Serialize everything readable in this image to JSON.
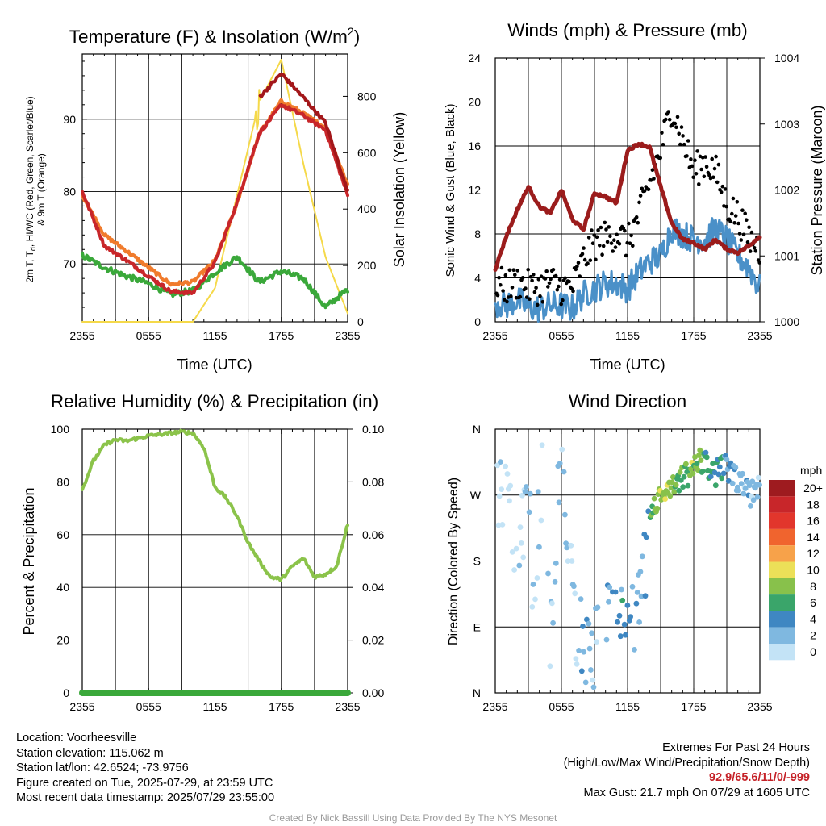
{
  "colors": {
    "red": "#c8262a",
    "green": "#3aa83a",
    "orange": "#f07b2c",
    "yellow": "#f5d94a",
    "maroon": "#9b1c1c",
    "blue": "#4a90c8",
    "black": "#000000",
    "rh_green": "#8bc34a",
    "precip_green": "#3aa83a",
    "extremes_red": "#c52127",
    "credit_gray": "#9a9a9a"
  },
  "panels": {
    "temperature": {
      "title_main": "Temperature (F) & Insolation (W/m",
      "title_sup": "2",
      "title_end": ")",
      "ylabel_line1": "2m T, T",
      "ylabel_sub": "d",
      "ylabel_rest": ", HI/WC (Red, Green, Scarlet/Blue)",
      "ylabel_line2": "& 9m T (Orange)",
      "y2label": "Solar Insolation (Yellow)",
      "xlabel": "Time (UTC)",
      "xticks": [
        "2355",
        "0555",
        "1155",
        "1755",
        "2355"
      ],
      "yticks": [
        "70",
        "80",
        "90"
      ],
      "y2ticks": [
        "0",
        "200",
        "400",
        "600",
        "800"
      ]
    },
    "winds": {
      "title": "Winds (mph) & Pressure (mb)",
      "ylabel": "Sonic Wind & Gust (Blue, Black)",
      "y2label": "Station Pressure (Maroon)",
      "xlabel": "Time (UTC)",
      "xticks": [
        "2355",
        "0555",
        "1155",
        "1755",
        "2355"
      ],
      "yticks": [
        "0",
        "4",
        "8",
        "12",
        "16",
        "20",
        "24"
      ],
      "y2ticks": [
        "1000",
        "1001",
        "1002",
        "1003",
        "1004"
      ]
    },
    "humidity": {
      "title": "Relative Humidity (%) & Precipitation (in)",
      "ylabel": "Percent & Precipitation",
      "xticks": [
        "2355",
        "0555",
        "1155",
        "1755",
        "2355"
      ],
      "yticks": [
        "0",
        "20",
        "40",
        "60",
        "80",
        "100"
      ],
      "y2ticks": [
        "0.00",
        "0.02",
        "0.04",
        "0.06",
        "0.08",
        "0.10"
      ]
    },
    "direction": {
      "title": "Wind Direction",
      "ylabel": "Direction (Colored By Speed)",
      "xticks": [
        "2355",
        "0555",
        "1155",
        "1755",
        "2355"
      ],
      "yticks": [
        "N",
        "E",
        "S",
        "W",
        "N"
      ],
      "legend_title": "mph",
      "legend_labels": [
        "20+",
        "18",
        "16",
        "14",
        "12",
        "10",
        "8",
        "6",
        "4",
        "2",
        "0"
      ],
      "legend_colors": [
        "#9e1b1f",
        "#c8262a",
        "#e2362c",
        "#f0642e",
        "#f7a24a",
        "#ece058",
        "#88c14b",
        "#3aa56a",
        "#3f87c2",
        "#7fb8e0",
        "#c3e3f6"
      ]
    }
  },
  "chart_data": [
    {
      "type": "line",
      "title": "Temperature (F) & Insolation (W/m2)",
      "xlabel": "Time (UTC)",
      "ylabel": "2m T, Td, HI/WC (Red, Green, Scarlet/Blue) & 9m T (Orange)",
      "y2label": "Solar Insolation (Yellow)",
      "x_hours": [
        0,
        2,
        4,
        6,
        8,
        10,
        12,
        14,
        16,
        18,
        20,
        22,
        24
      ],
      "xlim_hours": [
        0,
        24
      ],
      "ylim": [
        62,
        99
      ],
      "y2lim": [
        0,
        950
      ],
      "grid": true,
      "series": [
        {
          "name": "2m T (Red)",
          "values": [
            80,
            72.5,
            70.5,
            68.3,
            66.2,
            66,
            70.2,
            78.5,
            88,
            92,
            90.5,
            88.5,
            79.5
          ],
          "axis": "left",
          "color": "#c8262a"
        },
        {
          "name": "Td (Green)",
          "values": [
            71.2,
            69.5,
            68.3,
            67.3,
            65.8,
            66.3,
            68.8,
            71,
            67.5,
            69,
            68,
            64,
            66.5
          ],
          "axis": "left",
          "color": "#3aa83a"
        },
        {
          "name": "HI/WC (Scarlet)",
          "values": [
            null,
            null,
            null,
            null,
            null,
            null,
            null,
            null,
            93,
            96.3,
            93,
            89.5,
            80
          ],
          "axis": "left",
          "color": "#a3171a"
        },
        {
          "name": "9m T (Orange)",
          "values": [
            79.5,
            74,
            71.8,
            69.5,
            67.2,
            67.5,
            70.5,
            78.3,
            88,
            92.5,
            90.8,
            88.8,
            81
          ],
          "axis": "left",
          "color": "#f07b2c"
        },
        {
          "name": "Solar Insolation (Yellow)",
          "values": [
            0,
            0,
            0,
            0,
            0,
            0,
            120,
            450,
            780,
            930,
            560,
            230,
            30
          ],
          "axis": "right",
          "color": "#f5d94a"
        }
      ]
    },
    {
      "type": "line",
      "title": "Winds (mph) & Pressure (mb)",
      "xlabel": "Time (UTC)",
      "ylabel": "Sonic Wind & Gust (Blue, Black)",
      "y2label": "Station Pressure (Maroon)",
      "x_hours": [
        0,
        1,
        2,
        3,
        4,
        5,
        6,
        7,
        8,
        9,
        10,
        11,
        12,
        13,
        14,
        15,
        16,
        17,
        18,
        19,
        20,
        21,
        22,
        23,
        24
      ],
      "xlim_hours": [
        0,
        24
      ],
      "ylim": [
        0,
        24
      ],
      "y2lim": [
        1000,
        1004
      ],
      "grid": true,
      "series": [
        {
          "name": "Sonic Wind (Blue)",
          "values": [
            1.8,
            1.5,
            2,
            1.3,
            1.2,
            1.5,
            1.5,
            1.2,
            2.5,
            3,
            3.5,
            3.5,
            3,
            4.5,
            5.5,
            6,
            8.5,
            8,
            7.5,
            7.5,
            8.5,
            7.5,
            6,
            5,
            3
          ],
          "axis": "left",
          "color": "#4a90c8"
        },
        {
          "name": "Gust (Black)",
          "values": [
            3,
            2.5,
            3,
            2.5,
            2.5,
            3,
            2.5,
            2.5,
            5,
            6.5,
            7,
            7.5,
            6.5,
            9,
            12,
            15,
            19,
            16,
            13,
            14,
            13,
            10,
            9,
            7,
            6
          ],
          "axis": "left",
          "color": "#000000",
          "style": "points"
        },
        {
          "name": "Station Pressure (Maroon)",
          "values": [
            1000.8,
            1001.3,
            1001.7,
            1002.05,
            1001.75,
            1001.65,
            1002,
            1001.55,
            1001.4,
            1001.95,
            1001.9,
            1001.8,
            1002.6,
            1002.7,
            1002.65,
            1002.05,
            1001.5,
            1001.25,
            1001.2,
            1001.1,
            1001.25,
            1001.1,
            1001.05,
            1001.15,
            1001.3
          ],
          "axis": "right",
          "color": "#9b1c1c"
        }
      ]
    },
    {
      "type": "line",
      "title": "Relative Humidity (%) & Precipitation (in)",
      "ylabel": "Percent & Precipitation",
      "x_hours": [
        0,
        1,
        2,
        3,
        4,
        5,
        6,
        7,
        8,
        9,
        10,
        11,
        12,
        13,
        14,
        15,
        16,
        17,
        18,
        19,
        20,
        21,
        22,
        23,
        24
      ],
      "xlim_hours": [
        0,
        24
      ],
      "ylim": [
        0,
        100
      ],
      "y2lim": [
        0,
        0.1
      ],
      "grid": true,
      "series": [
        {
          "name": "Relative Humidity",
          "values": [
            77,
            88,
            94,
            96,
            95.5,
            96.5,
            97.5,
            98,
            98.5,
            99,
            98.5,
            93,
            78,
            74,
            67,
            57,
            50,
            44,
            43,
            48,
            51,
            44,
            45,
            48,
            64
          ],
          "axis": "left",
          "color": "#8bc34a"
        },
        {
          "name": "Precipitation",
          "values": [
            0,
            0,
            0,
            0,
            0,
            0,
            0,
            0,
            0,
            0,
            0,
            0,
            0,
            0,
            0,
            0,
            0,
            0,
            0,
            0,
            0,
            0,
            0,
            0,
            0
          ],
          "axis": "right",
          "color": "#3aa83a"
        }
      ]
    },
    {
      "type": "scatter",
      "title": "Wind Direction",
      "ylabel": "Direction (Colored By Speed)",
      "xlim_hours": [
        0,
        24
      ],
      "ylim_deg": [
        0,
        360
      ],
      "grid": true,
      "legend": "right",
      "series": [
        {
          "name": "direction",
          "x_hours": [
            0.4,
            0.9,
            1.5,
            2.2,
            3,
            3.5,
            4.2,
            5,
            5.8,
            7.3,
            8,
            8.8,
            9.6,
            10.4,
            11,
            12,
            12.7,
            13.3,
            14.4,
            15.5,
            16.3,
            17.1,
            17.8,
            18.6,
            19.3,
            20,
            20.8,
            21.5,
            22.3,
            23.2,
            23.8
          ],
          "deg": [
            290,
            260,
            220,
            200,
            270,
            130,
            300,
            60,
            320,
            90,
            70,
            40,
            150,
            90,
            120,
            120,
            80,
            140,
            260,
            270,
            280,
            295,
            300,
            320,
            310,
            300,
            310,
            295,
            285,
            270,
            280
          ],
          "speed": [
            1,
            0.5,
            1,
            1,
            2,
            1,
            3,
            2,
            2,
            3,
            4,
            2,
            4,
            3,
            6,
            4,
            3,
            4,
            9,
            10,
            8,
            7,
            9,
            8,
            6,
            7,
            5,
            4,
            3,
            3,
            2
          ]
        }
      ]
    }
  ],
  "footer": {
    "location": "Location: Voorheesville",
    "elevation": "Station elevation: 115.062 m",
    "latlon": "Station lat/lon: 42.6524; -73.9756",
    "created": "Figure created on Tue, 2025-07-29, at 23:59 UTC",
    "recent": "Most recent data timestamp: 2025/07/29 23:55:00",
    "extremes_title": "Extremes For Past 24 Hours",
    "extremes_subtitle": "(High/Low/Max Wind/Precipitation/Snow Depth)",
    "extremes_values": "92.9/65.6/11/0/-999",
    "max_gust": "Max Gust: 21.7 mph On 07/29 at 1605 UTC",
    "credit": "Created By Nick Bassill Using Data Provided By The NYS Mesonet"
  }
}
